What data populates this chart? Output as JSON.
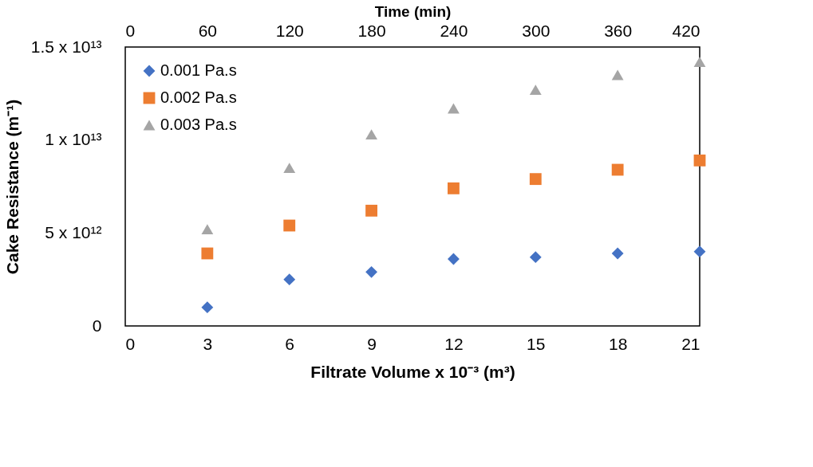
{
  "chart_data": {
    "type": "scatter",
    "xlabel": "Filtrate Volume x 10⁻³ (m³)",
    "ylabel": "Cake Resistance (m⁻¹)",
    "x2label": "Time (min)",
    "x": [
      3,
      6,
      9,
      12,
      15,
      18,
      21
    ],
    "series": [
      {
        "name": "0.001 Pa.s",
        "color": "#4472c4",
        "marker": "diamond",
        "values": [
          1000000000000.0,
          2500000000000.0,
          2900000000000.0,
          3600000000000.0,
          3700000000000.0,
          3900000000000.0,
          4000000000000.0
        ]
      },
      {
        "name": "0.002 Pa.s",
        "color": "#ed7d31",
        "marker": "square",
        "values": [
          3900000000000.0,
          5400000000000.0,
          6200000000000.0,
          7400000000000.0,
          7900000000000.0,
          8400000000000.0,
          8900000000000.0
        ]
      },
      {
        "name": "0.003 Pa.s",
        "color": "#a5a5a5",
        "marker": "triangle",
        "values": [
          5200000000000.0,
          8500000000000.0,
          10300000000000.0,
          11700000000000.0,
          12700000000000.0,
          13500000000000.0,
          14200000000000.0
        ]
      }
    ],
    "xlim": [
      0,
      21
    ],
    "xticks": [
      0,
      3,
      6,
      9,
      12,
      15,
      18,
      21
    ],
    "x2lim": [
      0,
      420
    ],
    "x2ticks": [
      0,
      60,
      120,
      180,
      240,
      300,
      360,
      420
    ],
    "ylim": [
      0,
      15000000000000.0
    ],
    "yticks": [
      0,
      {
        "value": 5000000000000.0,
        "label": "5 x 10¹²"
      },
      {
        "value": 10000000000000.0,
        "label": "1 x 10¹³"
      },
      {
        "value": 15000000000000.0,
        "label": "1.5 x 10¹³"
      }
    ],
    "grid": false,
    "legend": "top left"
  }
}
